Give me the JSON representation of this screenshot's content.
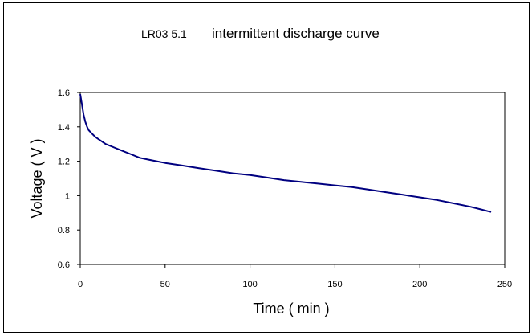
{
  "chart_data": {
    "type": "line",
    "title_left": "LR03 5.1",
    "title_right": "intermittent discharge curve",
    "xlabel": "Time ( min )",
    "ylabel": "Voltage ( V )",
    "xlim": [
      0,
      250
    ],
    "ylim": [
      0.6,
      1.6
    ],
    "x_ticks": [
      "0",
      "50",
      "100",
      "150",
      "200",
      "250"
    ],
    "y_ticks": [
      "0.6",
      "0.8",
      "1",
      "1.2",
      "1.4",
      "1.6"
    ],
    "grid": false,
    "legend": "none",
    "series": [
      {
        "color": "#000080",
        "x": [
          0,
          1,
          2,
          3,
          4,
          5,
          7,
          9,
          12,
          15,
          20,
          25,
          30,
          35,
          40,
          45,
          50,
          60,
          70,
          80,
          90,
          100,
          110,
          120,
          130,
          140,
          150,
          160,
          170,
          180,
          190,
          200,
          210,
          220,
          230,
          236,
          240,
          242
        ],
        "y": [
          1.59,
          1.53,
          1.47,
          1.43,
          1.4,
          1.38,
          1.36,
          1.34,
          1.32,
          1.3,
          1.28,
          1.26,
          1.24,
          1.22,
          1.21,
          1.2,
          1.19,
          1.175,
          1.16,
          1.145,
          1.13,
          1.12,
          1.105,
          1.09,
          1.08,
          1.07,
          1.06,
          1.05,
          1.035,
          1.02,
          1.005,
          0.99,
          0.975,
          0.955,
          0.935,
          0.92,
          0.91,
          0.905
        ]
      }
    ]
  }
}
